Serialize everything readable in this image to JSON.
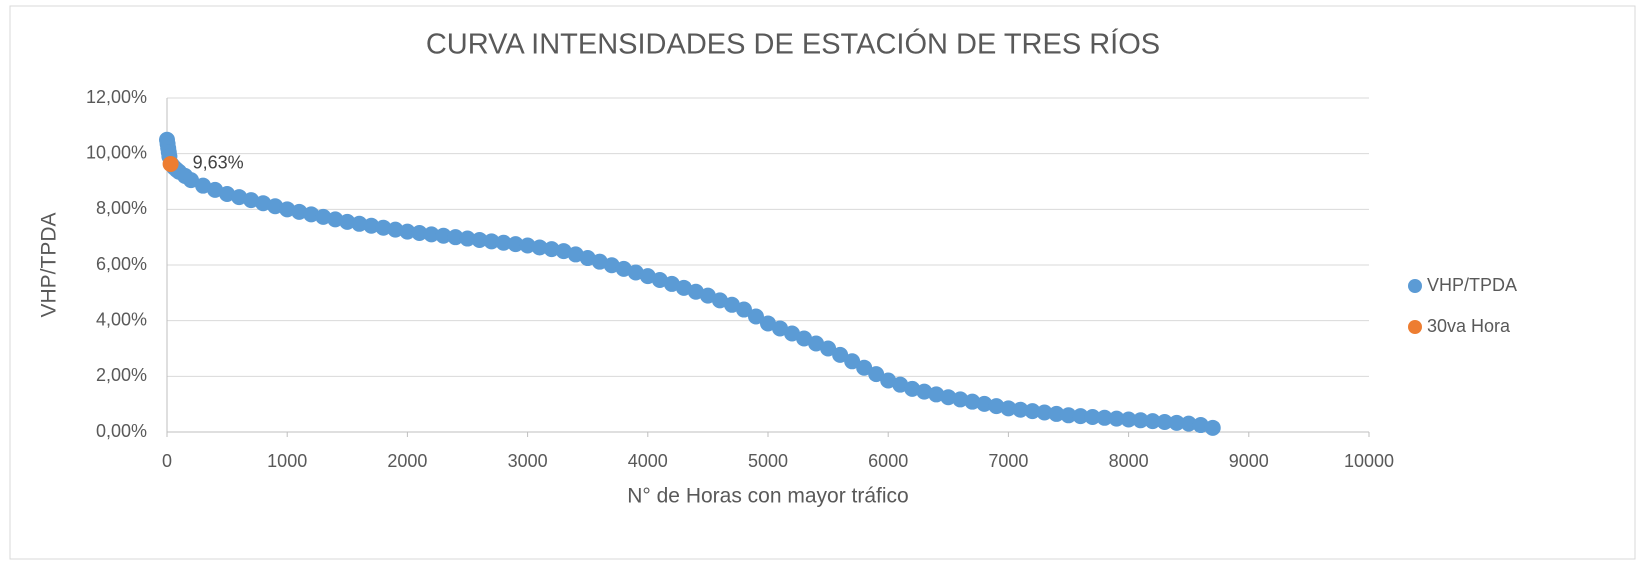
{
  "chart_data": {
    "type": "scatter",
    "title": "CURVA INTENSIDADES DE ESTACIÓN DE TRES RÍOS",
    "xlabel": "N° de Horas con mayor tráfico",
    "ylabel": "VHP/TPDA",
    "xlim": [
      0,
      10000
    ],
    "xticks": [
      0,
      1000,
      2000,
      3000,
      4000,
      5000,
      6000,
      7000,
      8000,
      9000,
      10000
    ],
    "ylim": [
      0,
      12
    ],
    "yticks": [
      {
        "value": 0,
        "label": "0,00%"
      },
      {
        "value": 2,
        "label": "2,00%"
      },
      {
        "value": 4,
        "label": "4,00%"
      },
      {
        "value": 6,
        "label": "6,00%"
      },
      {
        "value": 8,
        "label": "8,00%"
      },
      {
        "value": 10,
        "label": "10,00%"
      },
      {
        "value": 12,
        "label": "12,00%"
      }
    ],
    "grid": true,
    "legend": "right",
    "series": [
      {
        "name": "VHP/TPDA",
        "color": "#5b9bd5",
        "x": [
          0,
          5,
          10,
          15,
          20,
          40,
          60,
          80,
          100,
          150,
          200,
          300,
          400,
          500,
          600,
          700,
          800,
          900,
          1000,
          1100,
          1200,
          1300,
          1400,
          1500,
          1600,
          1700,
          1800,
          1900,
          2000,
          2100,
          2200,
          2300,
          2400,
          2500,
          2600,
          2700,
          2800,
          2900,
          3000,
          3100,
          3200,
          3300,
          3400,
          3500,
          3600,
          3700,
          3800,
          3900,
          4000,
          4100,
          4200,
          4300,
          4400,
          4500,
          4600,
          4700,
          4800,
          4900,
          5000,
          5100,
          5200,
          5300,
          5400,
          5500,
          5600,
          5700,
          5800,
          5900,
          6000,
          6100,
          6200,
          6300,
          6400,
          6500,
          6600,
          6700,
          6800,
          6900,
          7000,
          7100,
          7200,
          7300,
          7400,
          7500,
          7600,
          7700,
          7800,
          7900,
          8000,
          8100,
          8200,
          8300,
          8400,
          8500,
          8600,
          8700
        ],
        "values": [
          10.5,
          10.35,
          10.2,
          10.05,
          9.9,
          9.6,
          9.5,
          9.42,
          9.35,
          9.2,
          9.05,
          8.85,
          8.7,
          8.55,
          8.44,
          8.33,
          8.22,
          8.11,
          8.0,
          7.91,
          7.82,
          7.73,
          7.64,
          7.55,
          7.48,
          7.41,
          7.34,
          7.27,
          7.2,
          7.15,
          7.1,
          7.05,
          7.0,
          6.95,
          6.9,
          6.85,
          6.8,
          6.75,
          6.7,
          6.63,
          6.57,
          6.5,
          6.38,
          6.25,
          6.12,
          5.99,
          5.86,
          5.73,
          5.6,
          5.46,
          5.32,
          5.18,
          5.04,
          4.9,
          4.73,
          4.57,
          4.4,
          4.15,
          3.9,
          3.72,
          3.54,
          3.36,
          3.18,
          3.0,
          2.77,
          2.54,
          2.31,
          2.08,
          1.85,
          1.7,
          1.55,
          1.45,
          1.35,
          1.25,
          1.17,
          1.09,
          1.01,
          0.93,
          0.85,
          0.8,
          0.75,
          0.7,
          0.65,
          0.6,
          0.57,
          0.54,
          0.51,
          0.48,
          0.45,
          0.42,
          0.39,
          0.36,
          0.33,
          0.3,
          0.25,
          0.15
        ]
      },
      {
        "name": "30va Hora",
        "color": "#ed7d31",
        "x": [
          30
        ],
        "values": [
          9.63
        ],
        "value_labels": [
          "9,63%"
        ]
      }
    ]
  }
}
